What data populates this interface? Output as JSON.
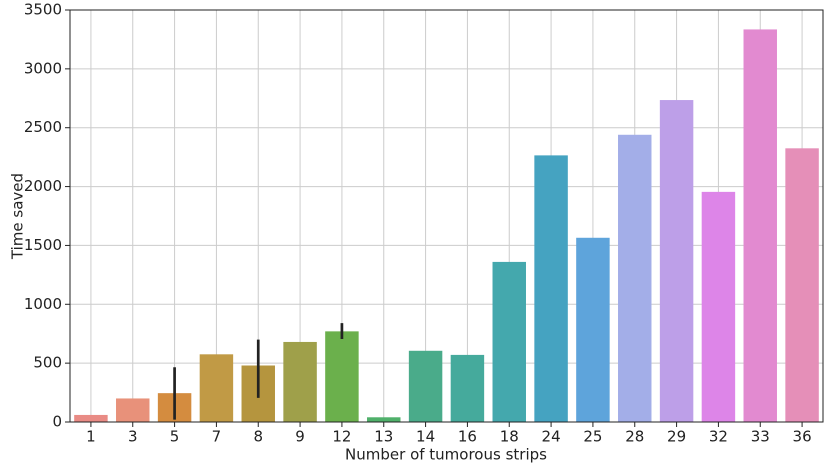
{
  "chart_data": {
    "type": "bar",
    "x_label": "Number of tumorous strips",
    "y_label": "Time saved",
    "categories": [
      "1",
      "3",
      "5",
      "7",
      "8",
      "9",
      "12",
      "13",
      "14",
      "16",
      "18",
      "24",
      "25",
      "28",
      "29",
      "32",
      "33",
      "36"
    ],
    "values": [
      60,
      200,
      245,
      575,
      480,
      680,
      770,
      40,
      605,
      570,
      1360,
      2265,
      1565,
      2440,
      2735,
      1955,
      3335,
      2325
    ],
    "error_bars": [
      null,
      null,
      [
        20,
        465
      ],
      null,
      [
        205,
        700
      ],
      null,
      [
        705,
        840
      ],
      null,
      null,
      null,
      null,
      null,
      null,
      null,
      null,
      null,
      null,
      null
    ],
    "colors": [
      "#e98b85",
      "#e8917a",
      "#d48c3f",
      "#c19a45",
      "#b5953e",
      "#9fa04a",
      "#6bb04c",
      "#4fb06a",
      "#4aab8a",
      "#45aa9c",
      "#44a8ad",
      "#45a3c1",
      "#5ea4db",
      "#a3aee8",
      "#bd9fe8",
      "#dd85e8",
      "#e28ad0",
      "#e58fb8"
    ],
    "error_color": "#222222",
    "ylim": [
      0,
      3500
    ],
    "yticks": [
      0,
      500,
      1000,
      1500,
      2000,
      2500,
      3000,
      3500
    ],
    "grid": true
  }
}
